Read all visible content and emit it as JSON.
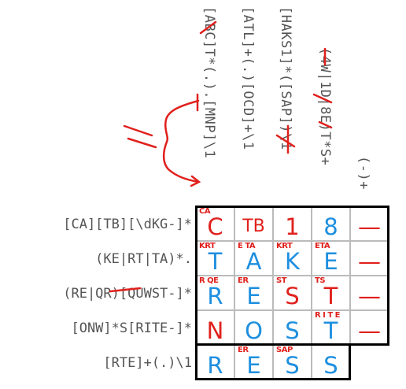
{
  "columns": [
    {
      "clue": "[ABC]T*(.).[MNP]\\1"
    },
    {
      "clue": "[ATL]+(.)[OCD]+\\1"
    },
    {
      "clue": "[HAKS1]*([SAP])\\1"
    },
    {
      "clue": "(4W|1D|8E)T*S+"
    },
    {
      "clue": "(-)+"
    }
  ],
  "rows": [
    {
      "clue": "[CA][TB][\\dKG-]*"
    },
    {
      "clue": "(KE|RT|TA)*."
    },
    {
      "clue": "(RE|QR)[QUWST-]*"
    },
    {
      "clue": "[ONW]*S[RITE-]*"
    },
    {
      "clue": "[RTE]+(.)\\1"
    }
  ],
  "grid": [
    [
      {
        "note": "CA",
        "letter": "C",
        "color": "#e0201c"
      },
      {
        "note": "",
        "letter": "TB",
        "color": "#e0201c"
      },
      {
        "note": "",
        "letter": "1",
        "color": "#e0201c"
      },
      {
        "note": "",
        "letter": "8",
        "color": "#1e8fe0"
      },
      {
        "note": "",
        "letter": "—",
        "color": "#e0201c"
      }
    ],
    [
      {
        "note": "KRT",
        "letter": "T",
        "color": "#1e8fe0"
      },
      {
        "note": "E TA",
        "letter": "A",
        "color": "#1e8fe0"
      },
      {
        "note": "KRT",
        "letter": "K",
        "color": "#1e8fe0"
      },
      {
        "note": "ETA",
        "letter": "E",
        "color": "#1e8fe0"
      },
      {
        "note": "",
        "letter": "—",
        "color": "#e0201c"
      }
    ],
    [
      {
        "note": "R QE",
        "letter": "R",
        "color": "#1e8fe0"
      },
      {
        "note": "ER",
        "letter": "E",
        "color": "#1e8fe0"
      },
      {
        "note": "ST",
        "letter": "S",
        "color": "#e0201c"
      },
      {
        "note": "TS",
        "letter": "T",
        "color": "#e0201c"
      },
      {
        "note": "",
        "letter": "—",
        "color": "#e0201c"
      }
    ],
    [
      {
        "note": "",
        "letter": "N",
        "color": "#e0201c"
      },
      {
        "note": "",
        "letter": "O",
        "color": "#1e8fe0"
      },
      {
        "note": "",
        "letter": "S",
        "color": "#1e8fe0"
      },
      {
        "note": "R I T E",
        "letter": "T",
        "color": "#1e8fe0"
      },
      {
        "note": "",
        "letter": "—",
        "color": "#e0201c"
      }
    ],
    [
      {
        "note": "",
        "letter": "R",
        "color": "#1e8fe0"
      },
      {
        "note": "ER",
        "letter": "E",
        "color": "#1e8fe0"
      },
      {
        "note": "SAP",
        "letter": "S",
        "color": "#1e8fe0"
      },
      {
        "note": "",
        "letter": "S",
        "color": "#1e8fe0"
      },
      {
        "note": "",
        "letter": "",
        "color": "#ffffff"
      }
    ]
  ],
  "annotations": {
    "equals_mark": "=",
    "ink_color": "#e0201c",
    "answer_color": "#1e8fe0"
  }
}
